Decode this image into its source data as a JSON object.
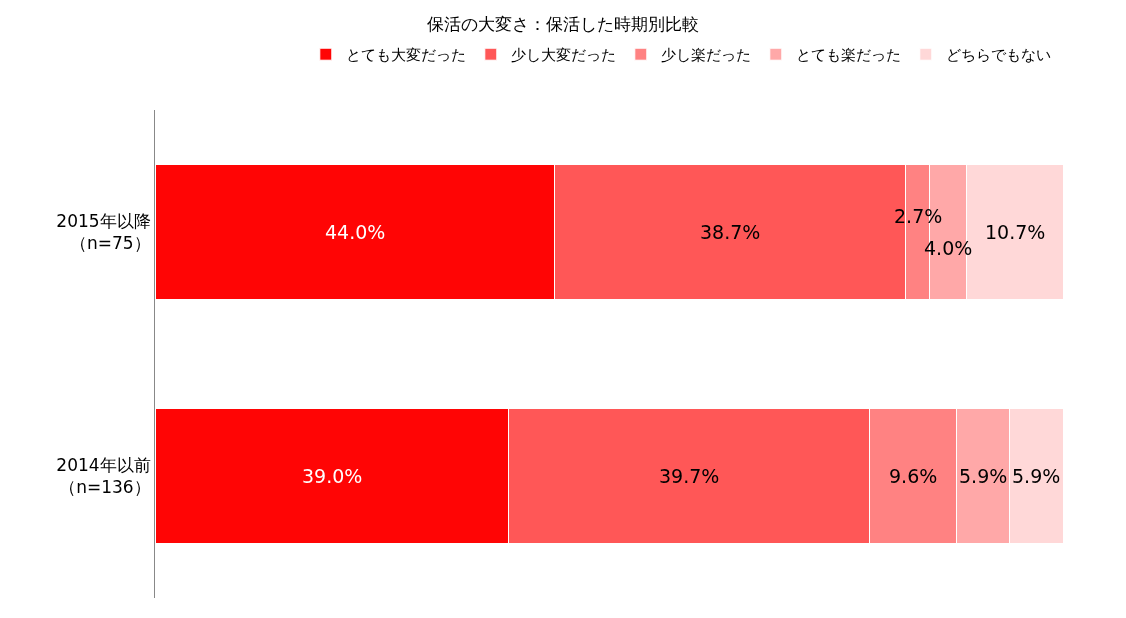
{
  "chart_data": {
    "type": "bar",
    "orientation": "horizontal",
    "stacked": true,
    "title": "保活の大変さ：保活した時期別比較",
    "categories": [
      "2015年以降（n=75）",
      "2014年以前（n=136）"
    ],
    "series": [
      {
        "name": "とても大変だった",
        "color": "#ff0505",
        "values": [
          44.0,
          39.0
        ],
        "value_labels": [
          "44.0%",
          "39.0%"
        ]
      },
      {
        "name": "少し大変だった",
        "color": "#ff5757",
        "values": [
          38.7,
          39.7
        ],
        "value_labels": [
          "38.7%",
          "39.7%"
        ]
      },
      {
        "name": "少し楽だった",
        "color": "#ff8282",
        "values": [
          2.7,
          9.6
        ],
        "value_labels": [
          "2.7%",
          "9.6%"
        ]
      },
      {
        "name": "とても楽だった",
        "color": "#ffa8a8",
        "values": [
          4.0,
          5.9
        ],
        "value_labels": [
          "4.0%",
          "5.9%"
        ]
      },
      {
        "name": "どちらでもない",
        "color": "#ffd8d8",
        "values": [
          10.7,
          5.9
        ],
        "value_labels": [
          "10.7%",
          "5.9%"
        ]
      }
    ],
    "legend": "top"
  }
}
